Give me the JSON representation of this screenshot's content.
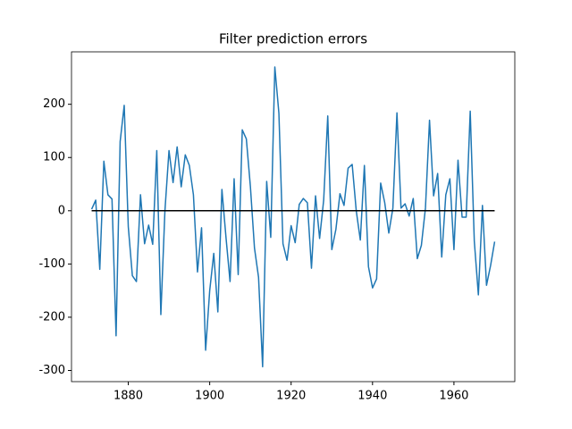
{
  "chart_data": {
    "type": "line",
    "title": "Filter prediction errors",
    "x": [
      1871,
      1872,
      1873,
      1874,
      1875,
      1876,
      1877,
      1878,
      1879,
      1880,
      1881,
      1882,
      1883,
      1884,
      1885,
      1886,
      1887,
      1888,
      1889,
      1890,
      1891,
      1892,
      1893,
      1894,
      1895,
      1896,
      1897,
      1898,
      1899,
      1900,
      1901,
      1902,
      1903,
      1904,
      1905,
      1906,
      1907,
      1908,
      1909,
      1910,
      1911,
      1912,
      1913,
      1914,
      1915,
      1916,
      1917,
      1918,
      1919,
      1920,
      1921,
      1922,
      1923,
      1924,
      1925,
      1926,
      1927,
      1928,
      1929,
      1930,
      1931,
      1932,
      1933,
      1934,
      1935,
      1936,
      1937,
      1938,
      1939,
      1940,
      1941,
      1942,
      1943,
      1944,
      1945,
      1946,
      1947,
      1948,
      1949,
      1950,
      1951,
      1952,
      1953,
      1954,
      1955,
      1956,
      1957,
      1958,
      1959,
      1960,
      1961,
      1962,
      1963,
      1964,
      1965,
      1966,
      1967,
      1968,
      1969,
      1970
    ],
    "series": [
      {
        "color": "#1f77b4",
        "values": [
          3,
          20,
          -110,
          93,
          30,
          22,
          -235,
          130,
          198,
          -30,
          -122,
          -133,
          30,
          -62,
          -27,
          -63,
          113,
          -195,
          0,
          113,
          53,
          120,
          45,
          105,
          85,
          30,
          -115,
          -32,
          -262,
          -150,
          -80,
          -190,
          40,
          -50,
          -133,
          60,
          -120,
          152,
          135,
          45,
          -70,
          -125,
          -293,
          55,
          -50,
          270,
          183,
          -62,
          -93,
          -28,
          -60,
          12,
          23,
          15,
          -108,
          28,
          -52,
          20,
          178,
          -73,
          -35,
          32,
          10,
          80,
          87,
          0,
          -55,
          85,
          -105,
          -145,
          -128,
          52,
          15,
          -42,
          5,
          184,
          5,
          13,
          -10,
          23,
          -90,
          -65,
          5,
          170,
          28,
          70,
          -87,
          30,
          60,
          -73,
          95,
          -12,
          -12,
          187,
          -57,
          -158,
          10,
          -140,
          -103,
          -58
        ]
      }
    ],
    "hline": {
      "y": 0,
      "color": "#000000"
    },
    "xlim": [
      1866.05,
      1974.95
    ],
    "ylim": [
      -321,
      298.5
    ],
    "xticks": [
      1880,
      1900,
      1920,
      1940,
      1960
    ],
    "yticks": [
      -300,
      -200,
      -100,
      0,
      100,
      200
    ]
  }
}
